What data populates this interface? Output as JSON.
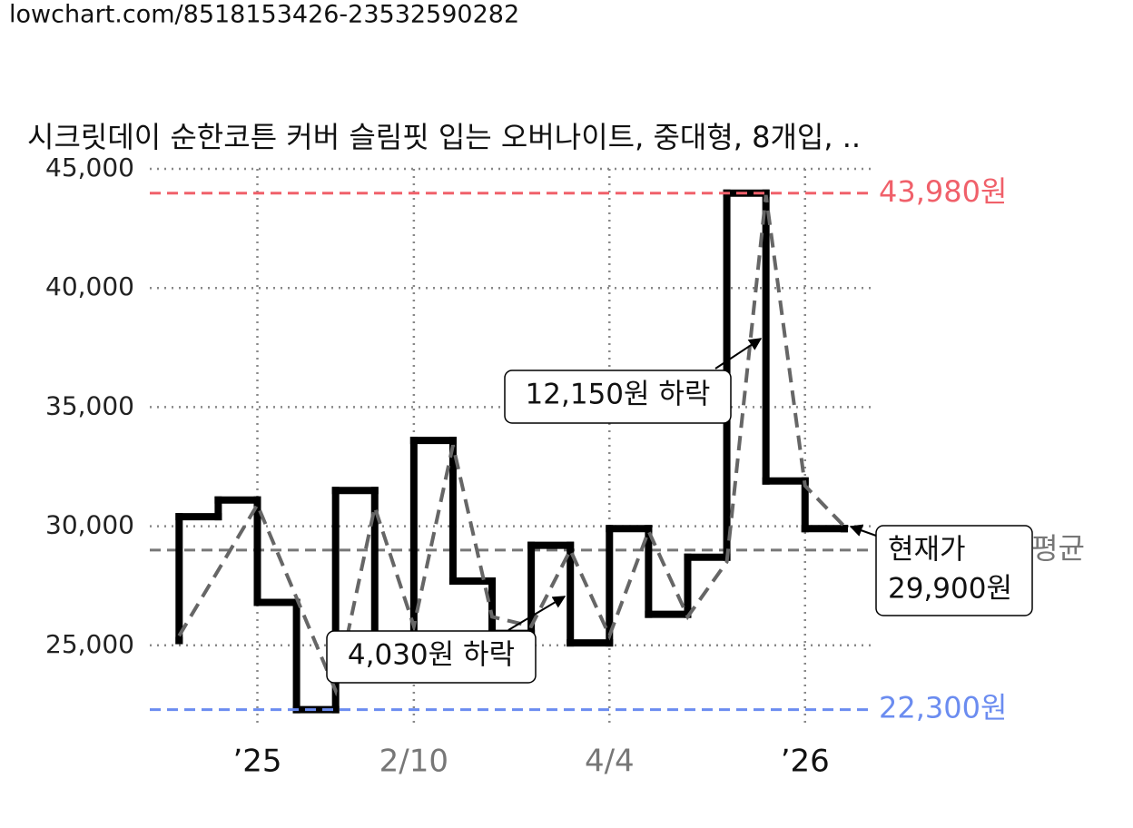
{
  "url": "lowchart.com/8518153426-23532590282",
  "chart_data": {
    "type": "line",
    "title": "시크릿데이 순한코튼 커버 슬림핏 입는 오버나이트, 중대형, 8개입, ..",
    "series": [
      {
        "color": "#000000",
        "step": "post",
        "x": [
          0,
          0,
          1,
          2,
          3,
          4,
          5,
          6,
          7,
          8,
          9,
          10,
          11,
          12,
          13,
          14,
          15,
          16,
          17
        ],
        "values": [
          25200,
          30400,
          31100,
          26800,
          22300,
          31500,
          25300,
          33600,
          27700,
          25500,
          29200,
          25100,
          29900,
          26300,
          28700,
          43980,
          31900,
          29900,
          29900
        ]
      },
      {
        "color": "#666666",
        "dash": true,
        "x": [
          0,
          2,
          4,
          5,
          6,
          7,
          8,
          9,
          10,
          11,
          12,
          13,
          14,
          15,
          16,
          17
        ],
        "values": [
          25400,
          30900,
          23100,
          30800,
          25800,
          33400,
          26200,
          25800,
          29000,
          25400,
          29800,
          26200,
          28500,
          43900,
          31700,
          30000
        ]
      }
    ],
    "xlim": [
      -0.75,
      17.7
    ],
    "ylim": [
      21600,
      45000
    ],
    "xticks": [
      {
        "value": 2,
        "label": "’25"
      },
      {
        "value": 6,
        "label": "2/10"
      },
      {
        "value": 11,
        "label": "4/4"
      },
      {
        "value": 16,
        "label": "’26"
      }
    ],
    "yticks": [
      {
        "value": 45000,
        "label": "45,000"
      },
      {
        "value": 40000,
        "label": "40,000"
      },
      {
        "value": 35000,
        "label": "35,000"
      },
      {
        "value": 30000,
        "label": "30,000"
      },
      {
        "value": 25000,
        "label": "25,000"
      }
    ],
    "grid": true,
    "ref_lines": [
      {
        "value": 29000,
        "label": "평균",
        "color": "#777777"
      },
      {
        "value": 43980,
        "label": "43,980원",
        "color": "#f0606a"
      },
      {
        "value": 22300,
        "label": "22,300원",
        "color": "#6b8cf0"
      }
    ],
    "annotations": [
      "12,150원 하락",
      "4,030원 하락"
    ],
    "current_label": [
      "현재가",
      "29,900원"
    ]
  }
}
